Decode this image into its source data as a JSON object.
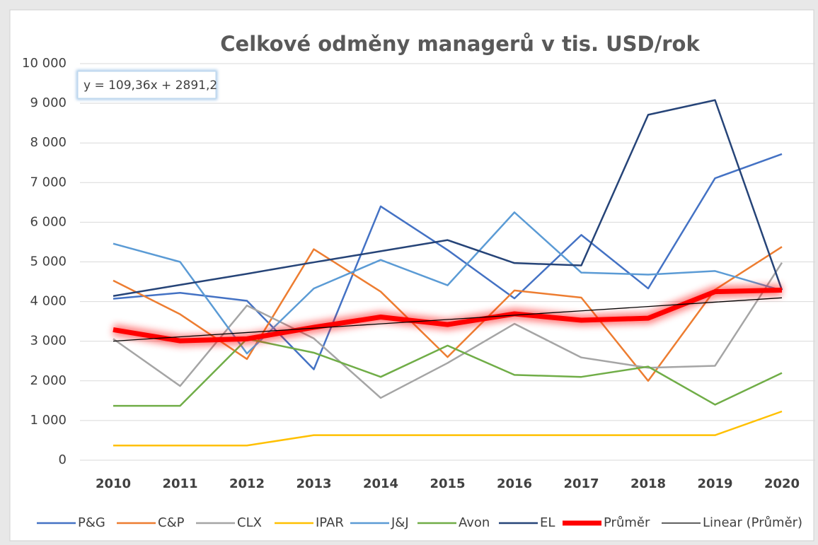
{
  "chart_data": {
    "type": "line",
    "title": "Celkové odměny managerů v tis. USD/rok",
    "annotation": "y = 109,36x + 2891,2",
    "categories": [
      "2010",
      "2011",
      "2012",
      "2013",
      "2014",
      "2015",
      "2016",
      "2017",
      "2018",
      "2019",
      "2020"
    ],
    "ylim": [
      0,
      10000
    ],
    "yticks": [
      0,
      {
        "value": 1000,
        "label": "1 000"
      },
      {
        "value": 2000,
        "label": "2 000"
      },
      {
        "value": 3000,
        "label": "3 000"
      },
      {
        "value": 4000,
        "label": "4 000"
      },
      {
        "value": 5000,
        "label": "5 000"
      },
      {
        "value": 6000,
        "label": "6 000"
      },
      {
        "value": 7000,
        "label": "7 000"
      },
      {
        "value": 8000,
        "label": "8 000"
      },
      {
        "value": 9000,
        "label": "9 000"
      },
      {
        "value": 10000,
        "label": "10 000"
      }
    ],
    "grid": true,
    "legend": "bottom",
    "series": [
      {
        "name": "P&G",
        "color": "#4472c4",
        "values": [
          4070,
          4220,
          4020,
          2290,
          6400,
          5300,
          4080,
          5680,
          4330,
          7110,
          7720
        ]
      },
      {
        "name": "C&P",
        "color": "#ed7d31",
        "values": [
          4530,
          3680,
          2550,
          5320,
          4250,
          2600,
          4280,
          4100,
          2000,
          4300,
          5380
        ]
      },
      {
        "name": "CLX",
        "color": "#a5a5a5",
        "values": [
          3060,
          1870,
          3900,
          3070,
          1570,
          2450,
          3440,
          2590,
          2330,
          2380,
          4980
        ]
      },
      {
        "name": "IPAR",
        "color": "#ffc000",
        "values": [
          370,
          370,
          370,
          630,
          630,
          630,
          630,
          630,
          630,
          630,
          1230
        ]
      },
      {
        "name": "J&J",
        "color": "#5b9bd5",
        "values": [
          5460,
          5000,
          2690,
          4330,
          5050,
          4410,
          6250,
          4730,
          4680,
          4770,
          4280
        ]
      },
      {
        "name": "Avon",
        "color": "#70ad47",
        "values": [
          1370,
          1370,
          3060,
          2710,
          2100,
          2890,
          2150,
          2100,
          2360,
          1400,
          2200
        ]
      },
      {
        "name": "EL",
        "color": "#264478",
        "values": [
          4140,
          4420,
          4700,
          4990,
          5270,
          5550,
          4970,
          4910,
          8710,
          9080,
          4290
        ]
      },
      {
        "name": "Průměr",
        "color": "#ff0000",
        "values": [
          3290,
          3010,
          3060,
          3350,
          3610,
          3420,
          3690,
          3530,
          3580,
          4250,
          4290
        ]
      },
      {
        "name": "Linear (Průměr)",
        "color": "#000000",
        "values": [
          3001,
          3110,
          3219,
          3329,
          3438,
          3547,
          3657,
          3766,
          3875,
          3985,
          4094
        ]
      }
    ]
  }
}
